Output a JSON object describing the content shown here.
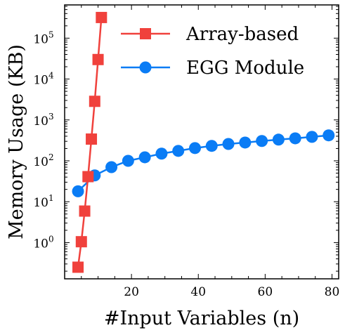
{
  "chart_data": {
    "type": "line",
    "xlabel": "#Input Variables (n)",
    "ylabel": "Memory Usage (KB)",
    "xlim": [
      0,
      82
    ],
    "x_ticks": [
      20,
      40,
      60,
      80
    ],
    "y_scale": "log",
    "ylim": [
      0.13,
      650000
    ],
    "y_ticks": [
      {
        "value": 1,
        "base": "10",
        "exp": "0"
      },
      {
        "value": 10,
        "base": "10",
        "exp": "1"
      },
      {
        "value": 100,
        "base": "10",
        "exp": "2"
      },
      {
        "value": 1000,
        "base": "10",
        "exp": "3"
      },
      {
        "value": 10000,
        "base": "10",
        "exp": "4"
      },
      {
        "value": 100000,
        "base": "10",
        "exp": "5"
      }
    ],
    "legend_position": "top-right",
    "grid": false,
    "series": [
      {
        "name": "Array-based",
        "color": "#f0413c",
        "marker": "square",
        "x": [
          4,
          5,
          6,
          7,
          8,
          9,
          10,
          11
        ],
        "y": [
          0.25,
          1.05,
          5.9,
          41,
          340,
          2850,
          30000,
          320000
        ]
      },
      {
        "name": "EGG Module",
        "color": "#0a7cf5",
        "marker": "circle",
        "x": [
          4,
          9,
          14,
          19,
          24,
          29,
          34,
          39,
          44,
          49,
          54,
          59,
          64,
          69,
          74,
          79
        ],
        "y": [
          18,
          44,
          70,
          100,
          122,
          150,
          175,
          205,
          232,
          258,
          280,
          305,
          330,
          355,
          385,
          420
        ]
      }
    ]
  }
}
